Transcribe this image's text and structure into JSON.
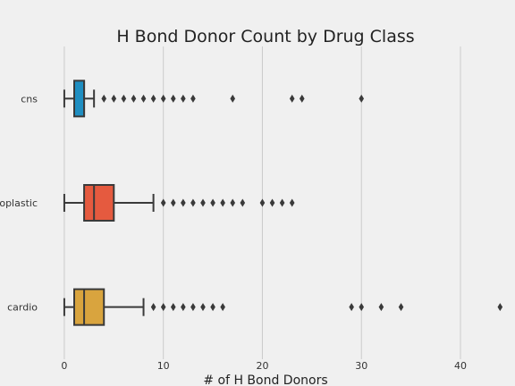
{
  "chart_data": {
    "type": "box",
    "title": "H Bond Donor Count by Drug Class",
    "xlabel": "# of H Bond Donors",
    "ylabel": "",
    "xlim": [
      -5.5,
      46.5
    ],
    "xticks": [
      0,
      10,
      20,
      30,
      40
    ],
    "grid": "vertical",
    "categories": [
      "cns",
      "antineoplastic",
      "cardio"
    ],
    "boxes": [
      {
        "category": "cns",
        "color": "#1f8ec1",
        "whisker_low": 0,
        "q1": 1,
        "median": 2,
        "q3": 2,
        "whisker_high": 3,
        "outliers": [
          4,
          5,
          6,
          7,
          8,
          9,
          10,
          11,
          12,
          13,
          17,
          23,
          24,
          30
        ]
      },
      {
        "category": "antineoplastic",
        "color": "#e55a3f",
        "whisker_low": 0,
        "q1": 2,
        "median": 3,
        "q3": 5,
        "whisker_high": 9,
        "outliers": [
          10,
          11,
          12,
          13,
          14,
          15,
          16,
          17,
          18,
          20,
          21,
          22,
          23
        ]
      },
      {
        "category": "cardio",
        "color": "#d9a43e",
        "whisker_low": 0,
        "q1": 1,
        "median": 2,
        "q3": 4,
        "whisker_high": 8,
        "outliers": [
          9,
          10,
          11,
          12,
          13,
          14,
          15,
          16,
          29,
          30,
          32,
          34,
          44
        ]
      }
    ]
  }
}
